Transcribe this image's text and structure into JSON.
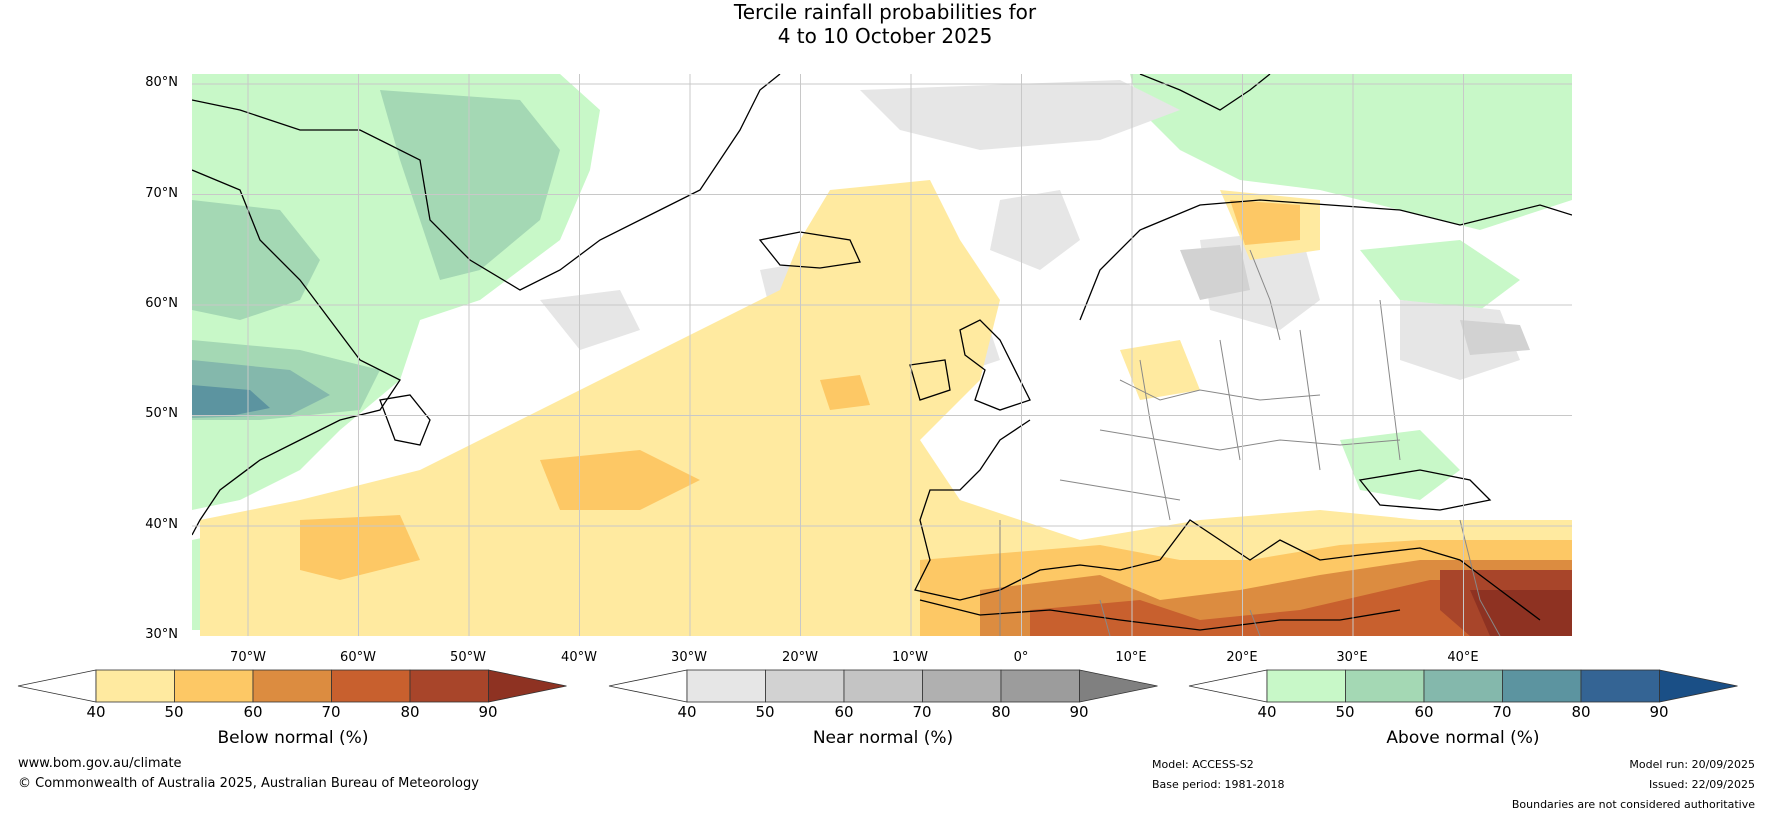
{
  "title_line1": "Tercile rainfall probabilities for",
  "title_line2": "4 to 10 October 2025",
  "lat_ticks": [
    "80°N",
    "70°N",
    "60°N",
    "50°N",
    "40°N",
    "30°N"
  ],
  "lon_ticks": [
    "70°W",
    "60°W",
    "50°W",
    "40°W",
    "30°W",
    "20°W",
    "10°W",
    "0°",
    "10°E",
    "20°E",
    "30°E",
    "40°E"
  ],
  "colors": {
    "below": [
      "#ffeaa0",
      "#fdc865",
      "#dc8c40",
      "#c8602e",
      "#a8452a",
      "#8e3222"
    ],
    "near": [
      "#e6e6e6",
      "#d2d2d2",
      "#c4c4c4",
      "#b0b0b0",
      "#9c9c9c",
      "#808080"
    ],
    "above": [
      "#c8f8c8",
      "#a4d8b4",
      "#84b8ac",
      "#5c94a0",
      "#346494",
      "#1a4f86"
    ],
    "land_border": "#000000",
    "country_border": "#888888",
    "grid": "#c8c8c8"
  },
  "colorbars": {
    "below": {
      "label": "Below normal (%)",
      "ticks": [
        "40",
        "50",
        "60",
        "70",
        "80",
        "90"
      ]
    },
    "near": {
      "label": "Near normal (%)",
      "ticks": [
        "40",
        "50",
        "60",
        "70",
        "80",
        "90"
      ]
    },
    "above": {
      "label": "Above normal (%)",
      "ticks": [
        "40",
        "50",
        "60",
        "70",
        "80",
        "90"
      ]
    }
  },
  "footer": {
    "website": "www.bom.gov.au/climate",
    "copyright": "© Commonwealth of Australia 2025, Australian Bureau of Meteorology",
    "model": "Model: ACCESS-S2",
    "base_period": "Base period: 1981-2018",
    "model_run": "Model run: 20/09/2025",
    "issued": "Issued: 22/09/2025",
    "disclaimer": "Boundaries are not considered authoritative"
  }
}
